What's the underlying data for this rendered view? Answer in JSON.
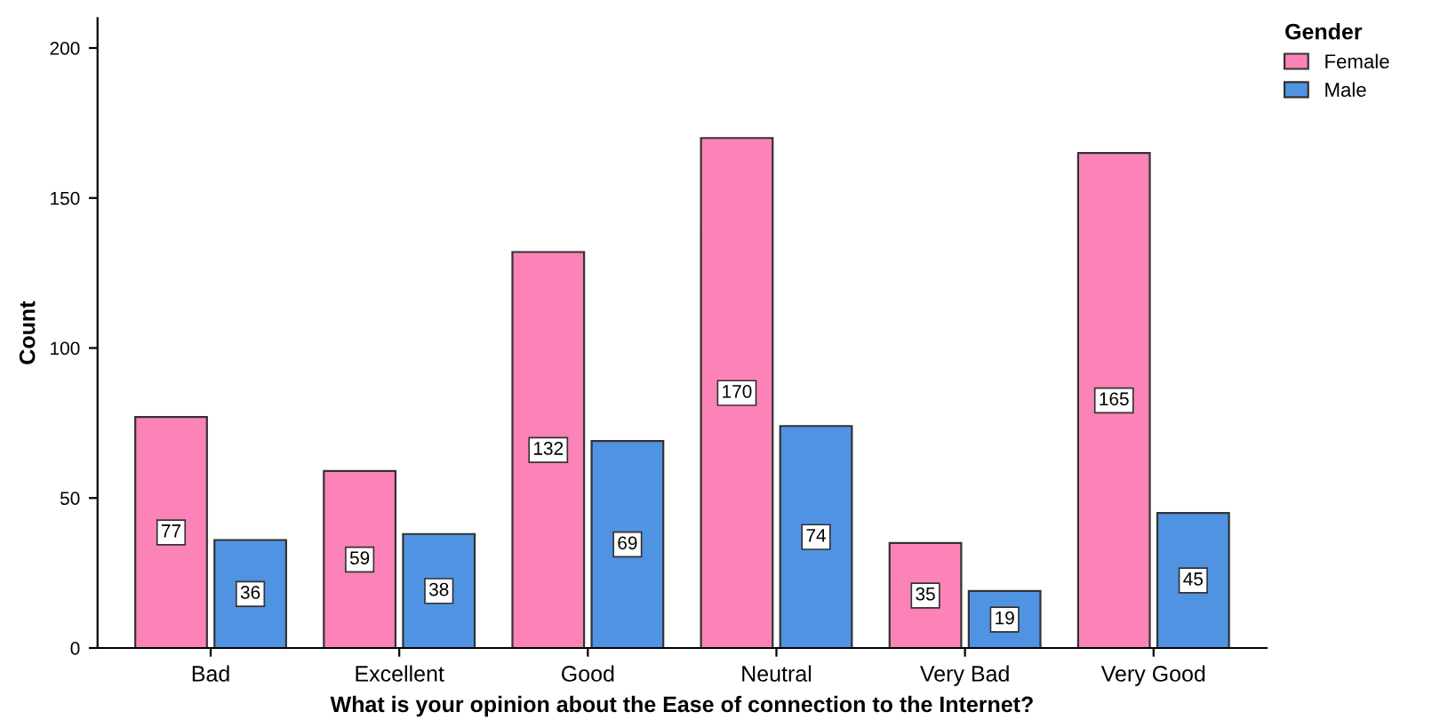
{
  "chart_data": {
    "type": "bar",
    "xlabel": "What is your opinion about the Ease of connection to the Internet?",
    "ylabel": "Count",
    "legend_title": "Gender",
    "legend": "top right",
    "categories": [
      "Bad",
      "Excellent",
      "Good",
      "Neutral",
      "Very Bad",
      "Very Good"
    ],
    "series": [
      {
        "name": "Female",
        "color": "#fc83b7",
        "values": [
          77,
          59,
          132,
          170,
          35,
          165
        ]
      },
      {
        "name": "Male",
        "color": "#5193e3",
        "values": [
          36,
          38,
          69,
          74,
          19,
          45
        ]
      }
    ],
    "ylim": [
      0,
      210
    ],
    "yticks": [
      0,
      50,
      100,
      150,
      200
    ],
    "data_labels": true,
    "grid": false
  }
}
